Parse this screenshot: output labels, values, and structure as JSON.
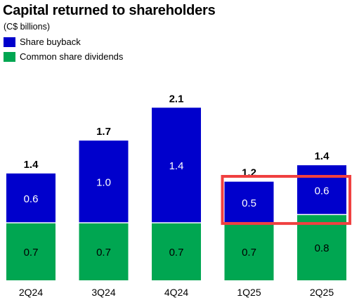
{
  "chart_data": {
    "type": "bar",
    "stacked": true,
    "title": "Capital returned to shareholders",
    "subtitle": "(C$ billions)",
    "categories": [
      "2Q24",
      "3Q24",
      "4Q24",
      "1Q25",
      "2Q25"
    ],
    "series": [
      {
        "name": "Common share dividends",
        "values": [
          0.7,
          0.7,
          0.7,
          0.7,
          0.8
        ],
        "color": "#00a651",
        "label_color": "#000000"
      },
      {
        "name": "Share buyback",
        "values": [
          0.6,
          1.0,
          1.4,
          0.5,
          0.6
        ],
        "color": "#0000cc",
        "label_color": "#ffffff"
      }
    ],
    "value_labels": [
      [
        "0.7",
        "0.7",
        "0.7",
        "0.7",
        "0.8"
      ],
      [
        "0.6",
        "1.0",
        "1.4",
        "0.5",
        "0.6"
      ]
    ],
    "totals": [
      1.4,
      1.7,
      2.1,
      1.2,
      1.4
    ],
    "total_labels": [
      "1.4",
      "1.7",
      "2.1",
      "1.2",
      "1.4"
    ],
    "legend": {
      "placement": "top-left",
      "entries": [
        {
          "label": "Share buyback",
          "color": "#0000cc"
        },
        {
          "label": "Common share dividends",
          "color": "#00a651"
        }
      ]
    },
    "highlight": {
      "categories": [
        "1Q25",
        "2Q25"
      ],
      "series": "Share buyback",
      "color": "#f04040"
    },
    "ylim": [
      0,
      2.2
    ],
    "grid": false
  }
}
